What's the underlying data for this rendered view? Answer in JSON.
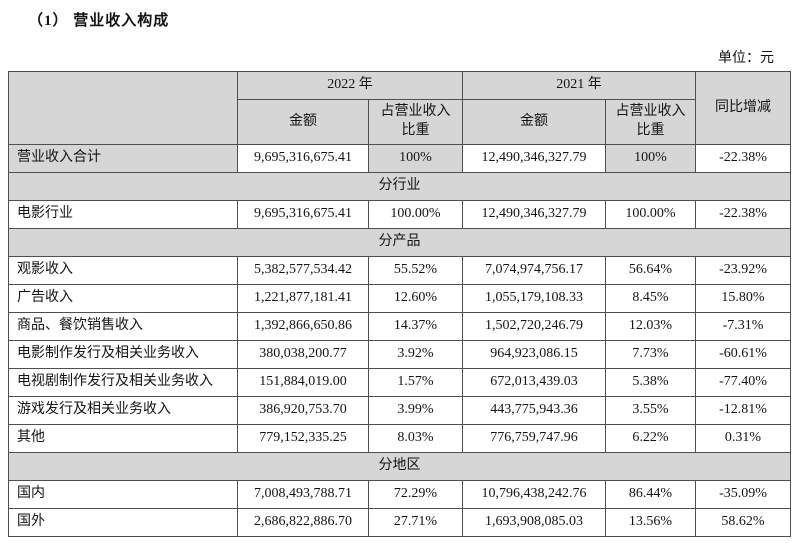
{
  "page": {
    "title": "（1） 营业收入构成",
    "unit_label": "单位：元"
  },
  "table": {
    "header": {
      "year_2022": "2022 年",
      "year_2021": "2021 年",
      "amount": "金额",
      "share": "占营业收入比重",
      "yoy": "同比增减"
    },
    "colors": {
      "cell_shade": "#d6d6d6",
      "border": "#4f4f4f"
    },
    "rows": [
      {
        "type": "data",
        "shaded": true,
        "label": "营业收入合计",
        "amount_2022": "9,695,316,675.41",
        "share_2022": "100%",
        "amount_2021": "12,490,346,327.79",
        "share_2021": "100%",
        "yoy": "-22.38%"
      },
      {
        "type": "section",
        "label": "分行业"
      },
      {
        "type": "data",
        "shaded": false,
        "label": "电影行业",
        "amount_2022": "9,695,316,675.41",
        "share_2022": "100.00%",
        "amount_2021": "12,490,346,327.79",
        "share_2021": "100.00%",
        "yoy": "-22.38%"
      },
      {
        "type": "section",
        "label": "分产品"
      },
      {
        "type": "data",
        "shaded": false,
        "label": "观影收入",
        "amount_2022": "5,382,577,534.42",
        "share_2022": "55.52%",
        "amount_2021": "7,074,974,756.17",
        "share_2021": "56.64%",
        "yoy": "-23.92%"
      },
      {
        "type": "data",
        "shaded": false,
        "label": "广告收入",
        "amount_2022": "1,221,877,181.41",
        "share_2022": "12.60%",
        "amount_2021": "1,055,179,108.33",
        "share_2021": "8.45%",
        "yoy": "15.80%"
      },
      {
        "type": "data",
        "shaded": false,
        "label": "商品、餐饮销售收入",
        "amount_2022": "1,392,866,650.86",
        "share_2022": "14.37%",
        "amount_2021": "1,502,720,246.79",
        "share_2021": "12.03%",
        "yoy": "-7.31%"
      },
      {
        "type": "data",
        "shaded": false,
        "label": "电影制作发行及相关业务收入",
        "amount_2022": "380,038,200.77",
        "share_2022": "3.92%",
        "amount_2021": "964,923,086.15",
        "share_2021": "7.73%",
        "yoy": "-60.61%"
      },
      {
        "type": "data",
        "shaded": false,
        "label": "电视剧制作发行及相关业务收入",
        "amount_2022": "151,884,019.00",
        "share_2022": "1.57%",
        "amount_2021": "672,013,439.03",
        "share_2021": "5.38%",
        "yoy": "-77.40%"
      },
      {
        "type": "data",
        "shaded": false,
        "label": "游戏发行及相关业务收入",
        "amount_2022": "386,920,753.70",
        "share_2022": "3.99%",
        "amount_2021": "443,775,943.36",
        "share_2021": "3.55%",
        "yoy": "-12.81%"
      },
      {
        "type": "data",
        "shaded": false,
        "label": "其他",
        "amount_2022": "779,152,335.25",
        "share_2022": "8.03%",
        "amount_2021": "776,759,747.96",
        "share_2021": "6.22%",
        "yoy": "0.31%"
      },
      {
        "type": "section",
        "label": "分地区"
      },
      {
        "type": "data",
        "shaded": false,
        "label": "国内",
        "amount_2022": "7,008,493,788.71",
        "share_2022": "72.29%",
        "amount_2021": "10,796,438,242.76",
        "share_2021": "86.44%",
        "yoy": "-35.09%"
      },
      {
        "type": "data",
        "shaded": false,
        "label": "国外",
        "amount_2022": "2,686,822,886.70",
        "share_2022": "27.71%",
        "amount_2021": "1,693,908,085.03",
        "share_2021": "13.56%",
        "yoy": "58.62%"
      }
    ]
  }
}
